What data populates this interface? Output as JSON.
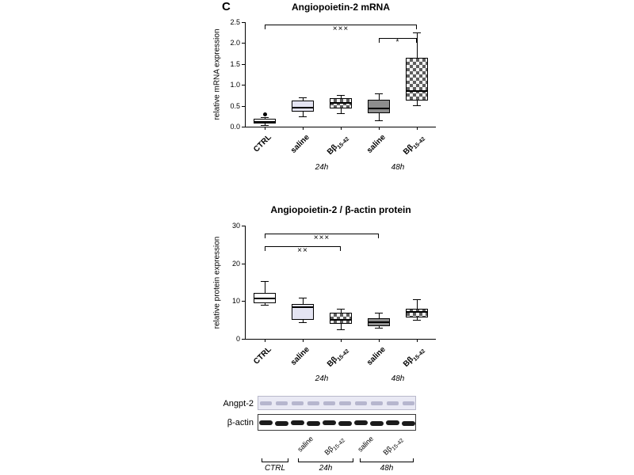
{
  "panel_label": "C",
  "colors": {
    "lavender": "#e4e4f2",
    "gray": "#8d8d8d",
    "checker_dark": "#5f5f5f",
    "checker_light": "#f2f2f2",
    "blot_strip_bg": "#e9e9f4",
    "blot_band_faint": "#b6b6ce",
    "blot_band_dark": "#1b1b1b"
  },
  "chart_data": [
    {
      "type": "box",
      "title": "Angiopoietin-2 mRNA",
      "ylabel": "relative mRNA expression",
      "ylim": [
        0,
        2.5
      ],
      "yticks": [
        "0.0",
        "0.5",
        "1.0",
        "1.5",
        "2.0",
        "2.5"
      ],
      "grid": false,
      "categories": [
        {
          "text": "CTRL"
        },
        {
          "text": "saline"
        },
        {
          "text": "Bβ",
          "sub": "15-42"
        },
        {
          "text": "saline"
        },
        {
          "text": "Bβ",
          "sub": "15-42"
        }
      ],
      "group_labels": [
        {
          "label": "24h",
          "from": 1,
          "to": 2
        },
        {
          "label": "48h",
          "from": 3,
          "to": 4
        }
      ],
      "boxes": [
        {
          "category": "CTRL",
          "whisker_low": 0.04,
          "q1": 0.07,
          "median": 0.12,
          "q3": 0.19,
          "whisker_high": 0.22,
          "outliers": [
            0.3
          ],
          "fill": "white"
        },
        {
          "category": "saline 24h",
          "whisker_low": 0.25,
          "q1": 0.36,
          "median": 0.45,
          "q3": 0.63,
          "whisker_high": 0.7,
          "outliers": [],
          "fill": "lavender"
        },
        {
          "category": "Bβ15-42 24h",
          "whisker_low": 0.32,
          "q1": 0.44,
          "median": 0.57,
          "q3": 0.68,
          "whisker_high": 0.76,
          "outliers": [],
          "fill": "checker"
        },
        {
          "category": "saline 48h",
          "whisker_low": 0.15,
          "q1": 0.32,
          "median": 0.44,
          "q3": 0.64,
          "whisker_high": 0.8,
          "outliers": [],
          "fill": "gray"
        },
        {
          "category": "Bβ15-42 48h",
          "whisker_low": 0.51,
          "q1": 0.62,
          "median": 0.85,
          "q3": 1.65,
          "whisker_high": 2.25,
          "outliers": [],
          "fill": "checker"
        }
      ],
      "brackets": [
        {
          "from": 0,
          "to": 4,
          "y": 2.45,
          "label": "×××"
        },
        {
          "from": 3,
          "to": 4,
          "y": 2.12,
          "label": "*"
        }
      ]
    },
    {
      "type": "box",
      "title": "Angiopoietin-2 / β-actin protein",
      "ylabel": "relative protein expression",
      "ylim": [
        0,
        30
      ],
      "yticks": [
        "0",
        "10",
        "20",
        "30"
      ],
      "grid": false,
      "categories": [
        {
          "text": "CTRL"
        },
        {
          "text": "saline"
        },
        {
          "text": "Bβ",
          "sub": "15-42"
        },
        {
          "text": "saline"
        },
        {
          "text": "Bβ",
          "sub": "15-42"
        }
      ],
      "group_labels": [
        {
          "label": "24h",
          "from": 1,
          "to": 2
        },
        {
          "label": "48h",
          "from": 3,
          "to": 4
        }
      ],
      "boxes": [
        {
          "category": "CTRL",
          "whisker_low": 9.0,
          "q1": 9.4,
          "median": 10.7,
          "q3": 12.2,
          "whisker_high": 15.3,
          "outliers": [],
          "fill": "white"
        },
        {
          "category": "saline 24h",
          "whisker_low": 4.4,
          "q1": 5.0,
          "median": 8.4,
          "q3": 9.2,
          "whisker_high": 10.9,
          "outliers": [],
          "fill": "lavender"
        },
        {
          "category": "Bβ15-42 24h",
          "whisker_low": 2.5,
          "q1": 4.0,
          "median": 5.0,
          "q3": 6.9,
          "whisker_high": 8.0,
          "outliers": [],
          "fill": "checker"
        },
        {
          "category": "saline 48h",
          "whisker_low": 2.9,
          "q1": 3.4,
          "median": 4.4,
          "q3": 5.4,
          "whisker_high": 6.9,
          "outliers": [],
          "fill": "gray"
        },
        {
          "category": "Bβ15-42 48h",
          "whisker_low": 5.0,
          "q1": 5.7,
          "median": 7.1,
          "q3": 8.0,
          "whisker_high": 10.5,
          "outliers": [],
          "fill": "checker"
        }
      ],
      "brackets": [
        {
          "from": 0,
          "to": 3,
          "y": 28.0,
          "label": "×××"
        },
        {
          "from": 0,
          "to": 2,
          "y": 24.5,
          "label": "××"
        }
      ]
    }
  ],
  "blot": {
    "rows": [
      {
        "label": "Angpt-2"
      },
      {
        "label": "β-actin"
      }
    ],
    "lanes": 10,
    "lane_labels": [
      {
        "text": "saline"
      },
      {
        "text": "Bβ",
        "sub": "15-42"
      },
      {
        "text": "saline"
      },
      {
        "text": "Bβ",
        "sub": "15-42"
      }
    ],
    "groups": [
      {
        "label": "CTRL"
      },
      {
        "label": "24h"
      },
      {
        "label": "48h"
      }
    ]
  }
}
